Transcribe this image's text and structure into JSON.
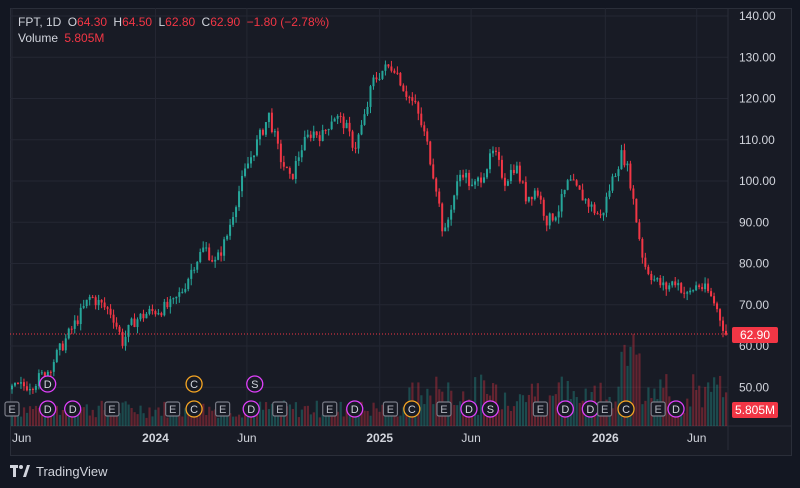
{
  "legend": {
    "symbol_text": "FPT, 1D",
    "o_label": "O",
    "o_value": "64.30",
    "h_label": "H",
    "h_value": "64.50",
    "l_label": "L",
    "l_value": "62.80",
    "c_label": "C",
    "c_value": "62.90",
    "change": "−1.80 (−2.78%)",
    "volume_label": "Volume",
    "volume_value": "5.805M"
  },
  "price_tag": "62.90",
  "volume_tag": "5.805M",
  "footer": {
    "brand": "TradingView"
  },
  "colors": {
    "up": "#26a69a",
    "down": "#f23645",
    "event_purple": "#e040fb",
    "event_orange": "#f6a623",
    "background": "#181b25",
    "grid": "#242733"
  },
  "chart_data": {
    "type": "candlestick",
    "y_ticks": [
      "140.00",
      "130.00",
      "120.00",
      "110.00",
      "100.00",
      "90.00",
      "80.00",
      "70.00",
      "60.00",
      "50.00"
    ],
    "ylim": [
      44,
      140
    ],
    "x_ticks": [
      {
        "label": "Jun",
        "bold": false,
        "t": 0.0
      },
      {
        "label": "2024",
        "bold": true,
        "t": 0.201
      },
      {
        "label": "Jun",
        "bold": false,
        "t": 0.329
      },
      {
        "label": "2025",
        "bold": true,
        "t": 0.515
      },
      {
        "label": "Jun",
        "bold": false,
        "t": 0.643
      },
      {
        "label": "2026",
        "bold": true,
        "t": 0.831
      },
      {
        "label": "Jun",
        "bold": false,
        "t": 0.959
      }
    ],
    "price_path": [
      [
        0.0,
        49.5
      ],
      [
        0.03,
        51
      ],
      [
        0.05,
        54
      ],
      [
        0.07,
        60
      ],
      [
        0.08,
        63
      ],
      [
        0.1,
        69
      ],
      [
        0.11,
        72
      ],
      [
        0.125,
        70
      ],
      [
        0.14,
        68
      ],
      [
        0.155,
        61
      ],
      [
        0.17,
        66
      ],
      [
        0.19,
        68
      ],
      [
        0.21,
        69
      ],
      [
        0.225,
        70
      ],
      [
        0.24,
        74
      ],
      [
        0.255,
        80
      ],
      [
        0.27,
        84
      ],
      [
        0.285,
        80
      ],
      [
        0.3,
        86
      ],
      [
        0.315,
        96
      ],
      [
        0.33,
        104
      ],
      [
        0.345,
        110
      ],
      [
        0.36,
        116
      ],
      [
        0.375,
        106
      ],
      [
        0.39,
        100
      ],
      [
        0.405,
        108
      ],
      [
        0.42,
        112
      ],
      [
        0.435,
        111
      ],
      [
        0.45,
        116
      ],
      [
        0.465,
        114
      ],
      [
        0.48,
        108
      ],
      [
        0.495,
        116
      ],
      [
        0.505,
        124
      ],
      [
        0.52,
        127
      ],
      [
        0.535,
        128
      ],
      [
        0.55,
        122
      ],
      [
        0.565,
        118
      ],
      [
        0.58,
        110
      ],
      [
        0.595,
        98
      ],
      [
        0.605,
        86
      ],
      [
        0.615,
        94
      ],
      [
        0.63,
        103
      ],
      [
        0.645,
        98
      ],
      [
        0.66,
        102
      ],
      [
        0.675,
        107
      ],
      [
        0.69,
        100
      ],
      [
        0.705,
        104
      ],
      [
        0.72,
        96
      ],
      [
        0.735,
        98
      ],
      [
        0.75,
        90
      ],
      [
        0.765,
        93
      ],
      [
        0.78,
        100
      ],
      [
        0.795,
        97
      ],
      [
        0.81,
        94
      ],
      [
        0.825,
        91
      ],
      [
        0.84,
        100
      ],
      [
        0.855,
        107
      ],
      [
        0.865,
        101
      ],
      [
        0.875,
        90
      ],
      [
        0.885,
        80
      ],
      [
        0.9,
        76
      ],
      [
        0.915,
        74
      ],
      [
        0.93,
        76
      ],
      [
        0.945,
        72
      ],
      [
        0.96,
        75
      ],
      [
        0.975,
        73
      ],
      [
        0.985,
        70
      ],
      [
        1.0,
        62.9
      ]
    ],
    "current_price": 62.9,
    "current_volume": "5.805M",
    "events_upper": [
      {
        "t": 0.05,
        "label": "D",
        "type": "dividend"
      },
      {
        "t": 0.255,
        "label": "C",
        "type": "corporate"
      },
      {
        "t": 0.34,
        "label": "S",
        "type": "split"
      }
    ],
    "events_lower": [
      {
        "t": 0.0,
        "label": "E"
      },
      {
        "t": 0.05,
        "label": "D"
      },
      {
        "t": 0.085,
        "label": "D"
      },
      {
        "t": 0.14,
        "label": "E"
      },
      {
        "t": 0.225,
        "label": "E"
      },
      {
        "t": 0.255,
        "label": "C"
      },
      {
        "t": 0.295,
        "label": "E"
      },
      {
        "t": 0.335,
        "label": "D"
      },
      {
        "t": 0.375,
        "label": "E"
      },
      {
        "t": 0.445,
        "label": "E"
      },
      {
        "t": 0.48,
        "label": "D"
      },
      {
        "t": 0.53,
        "label": "E"
      },
      {
        "t": 0.56,
        "label": "C"
      },
      {
        "t": 0.605,
        "label": "E"
      },
      {
        "t": 0.64,
        "label": "D"
      },
      {
        "t": 0.67,
        "label": "S"
      },
      {
        "t": 0.74,
        "label": "E"
      },
      {
        "t": 0.775,
        "label": "D"
      },
      {
        "t": 0.81,
        "label": "D"
      },
      {
        "t": 0.83,
        "label": "E"
      },
      {
        "t": 0.86,
        "label": "C"
      },
      {
        "t": 0.905,
        "label": "E"
      },
      {
        "t": 0.93,
        "label": "D"
      }
    ]
  }
}
